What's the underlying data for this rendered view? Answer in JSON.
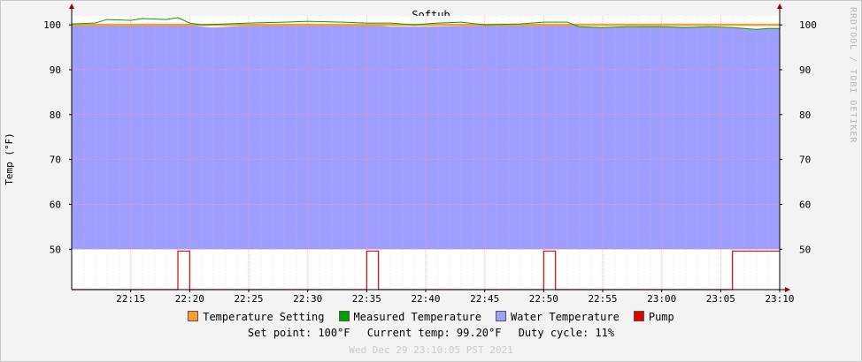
{
  "chart_data": {
    "type": "area",
    "title": "Softub",
    "ylabel": "Temp (°F)",
    "ylim": [
      41,
      102
    ],
    "yticks": [
      50,
      60,
      70,
      80,
      90,
      100
    ],
    "x_range": [
      "22:10",
      "23:10"
    ],
    "x_ticks": [
      "22:15",
      "22:20",
      "22:25",
      "22:30",
      "22:35",
      "22:40",
      "22:45",
      "22:50",
      "22:55",
      "23:00",
      "23:05",
      "23:10"
    ],
    "grid": true,
    "legend_position": "bottom",
    "series": [
      {
        "name": "Temperature Setting",
        "color": "#ff9a2e",
        "style": "line",
        "points": [
          [
            "22:10",
            100
          ],
          [
            "23:10",
            100
          ]
        ]
      },
      {
        "name": "Measured Temperature",
        "color": "#00a000",
        "style": "line",
        "points": [
          [
            "22:10",
            100.2
          ],
          [
            "22:12",
            100.4
          ],
          [
            "22:13",
            101.2
          ],
          [
            "22:15",
            101.0
          ],
          [
            "22:16",
            101.4
          ],
          [
            "22:18",
            101.2
          ],
          [
            "22:19",
            101.6
          ],
          [
            "22:20",
            100.4
          ],
          [
            "22:21",
            100.0
          ],
          [
            "22:25",
            100.4
          ],
          [
            "22:28",
            100.6
          ],
          [
            "22:30",
            100.8
          ],
          [
            "22:33",
            100.6
          ],
          [
            "22:35",
            100.4
          ],
          [
            "22:37",
            100.4
          ],
          [
            "22:39",
            100.0
          ],
          [
            "22:41",
            100.4
          ],
          [
            "22:43",
            100.6
          ],
          [
            "22:45",
            100.0
          ],
          [
            "22:48",
            100.2
          ],
          [
            "22:50",
            100.6
          ],
          [
            "22:52",
            100.6
          ],
          [
            "22:53",
            99.6
          ],
          [
            "22:55",
            99.4
          ],
          [
            "22:57",
            99.6
          ],
          [
            "23:00",
            99.6
          ],
          [
            "23:02",
            99.4
          ],
          [
            "23:04",
            99.6
          ],
          [
            "23:06",
            99.4
          ],
          [
            "23:08",
            99.0
          ],
          [
            "23:09",
            99.2
          ],
          [
            "23:10",
            99.2
          ]
        ]
      },
      {
        "name": "Water Temperature",
        "color": "#9e9eff",
        "style": "area",
        "points": [
          [
            "22:10",
            100.0
          ],
          [
            "22:20",
            100.0
          ],
          [
            "22:21",
            99.6
          ],
          [
            "22:22",
            99.4
          ],
          [
            "22:25",
            99.8
          ],
          [
            "22:30",
            100.0
          ],
          [
            "22:35",
            100.0
          ],
          [
            "22:37",
            99.6
          ],
          [
            "22:40",
            99.6
          ],
          [
            "22:45",
            99.8
          ],
          [
            "22:50",
            100.0
          ],
          [
            "22:52",
            100.2
          ],
          [
            "22:53",
            99.6
          ],
          [
            "22:55",
            99.4
          ],
          [
            "23:00",
            99.6
          ],
          [
            "23:05",
            99.4
          ],
          [
            "23:07",
            99.2
          ],
          [
            "23:08",
            99.0
          ],
          [
            "23:09",
            99.2
          ],
          [
            "23:10",
            99.2
          ]
        ]
      },
      {
        "name": "Pump",
        "color": "#e00000",
        "style": "line",
        "points": [
          [
            "22:10",
            41
          ],
          [
            "22:19",
            41
          ],
          [
            "22:19",
            49.6
          ],
          [
            "22:20",
            49.6
          ],
          [
            "22:20",
            41
          ],
          [
            "22:35",
            41
          ],
          [
            "22:35",
            49.6
          ],
          [
            "22:36",
            49.6
          ],
          [
            "22:36",
            41
          ],
          [
            "22:50",
            41
          ],
          [
            "22:50",
            49.6
          ],
          [
            "22:51",
            49.6
          ],
          [
            "22:51",
            41
          ],
          [
            "23:06",
            41
          ],
          [
            "23:06",
            49.6
          ],
          [
            "23:10",
            49.6
          ]
        ]
      }
    ]
  },
  "summary": {
    "set_point": "Set point: 100°F",
    "current_temp": "Current temp: 99.20°F",
    "duty_cycle": "Duty cycle: 11%"
  },
  "footer": "Wed Dec 29 23:10:05 PST 2021",
  "watermark": "RRDTOOL / TOBI OETIKER"
}
